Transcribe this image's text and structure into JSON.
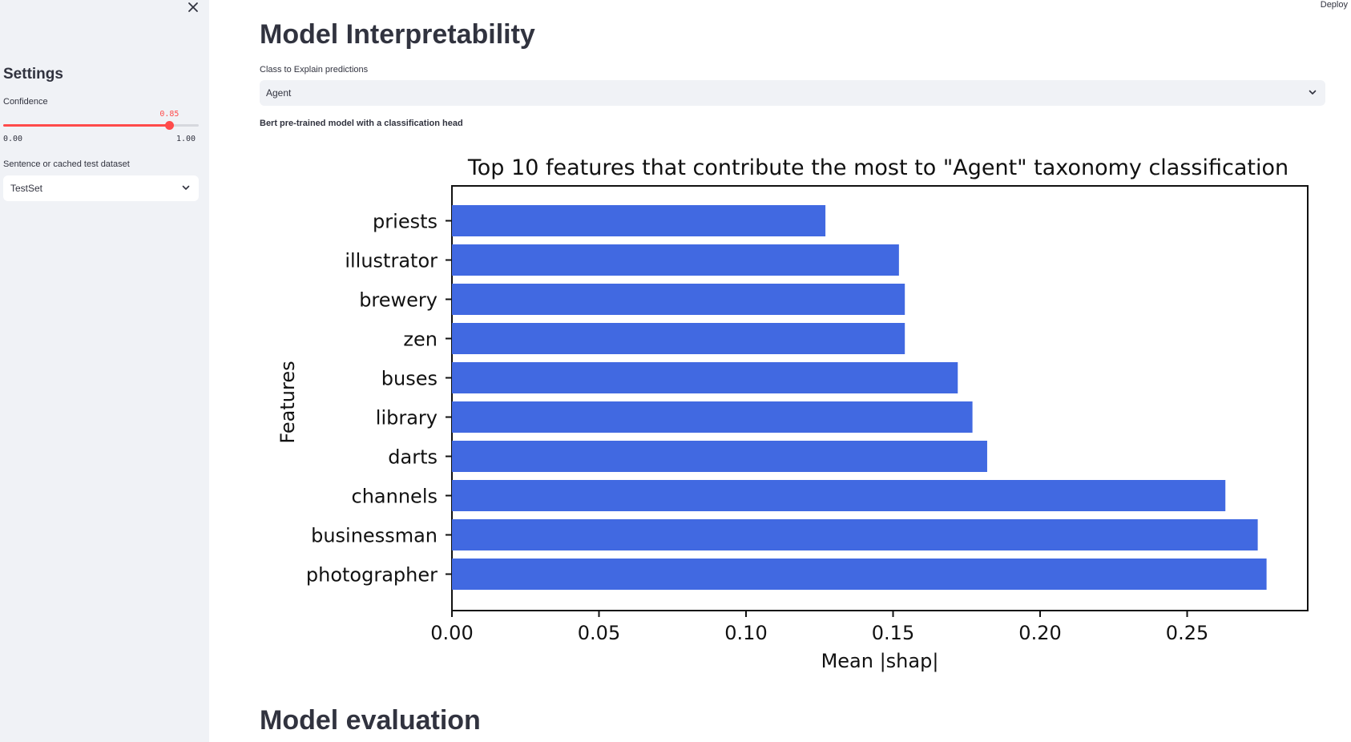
{
  "sidebar": {
    "title": "Settings",
    "confidence_label": "Confidence",
    "confidence": {
      "value": 0.85,
      "value_text": "0.85",
      "min": 0.0,
      "max": 1.0,
      "min_text": "0.00",
      "max_text": "1.00"
    },
    "dataset_label": "Sentence or cached test dataset",
    "dataset_selected": "TestSet"
  },
  "header": {
    "deploy_label": "Deploy"
  },
  "main": {
    "title": "Model Interpretability",
    "class_label": "Class to Explain predictions",
    "class_selected": "Agent",
    "caption": "Bert pre-trained model with a classification head",
    "section2_title": "Model evaluation"
  },
  "colors": {
    "accent": "#ff4b4b",
    "bar": "#4169e1",
    "sidebar_bg": "#f0f2f6"
  },
  "chart_data": {
    "type": "bar",
    "orientation": "horizontal",
    "title": "Top 10 features that contribute the most to \"Agent\" taxonomy classification",
    "xlabel": "Mean |shap|",
    "ylabel": "Features",
    "categories": [
      "priests",
      "illustrator",
      "brewery",
      "zen",
      "buses",
      "library",
      "darts",
      "channels",
      "businessman",
      "photographer"
    ],
    "values": [
      0.127,
      0.152,
      0.154,
      0.154,
      0.172,
      0.177,
      0.182,
      0.263,
      0.274,
      0.277
    ],
    "xlim": [
      0,
      0.291
    ],
    "xticks": [
      0.0,
      0.05,
      0.1,
      0.15,
      0.2,
      0.25
    ],
    "xtick_labels": [
      "0.00",
      "0.05",
      "0.10",
      "0.15",
      "0.20",
      "0.25"
    ],
    "grid": false,
    "color": "#4169e1"
  }
}
